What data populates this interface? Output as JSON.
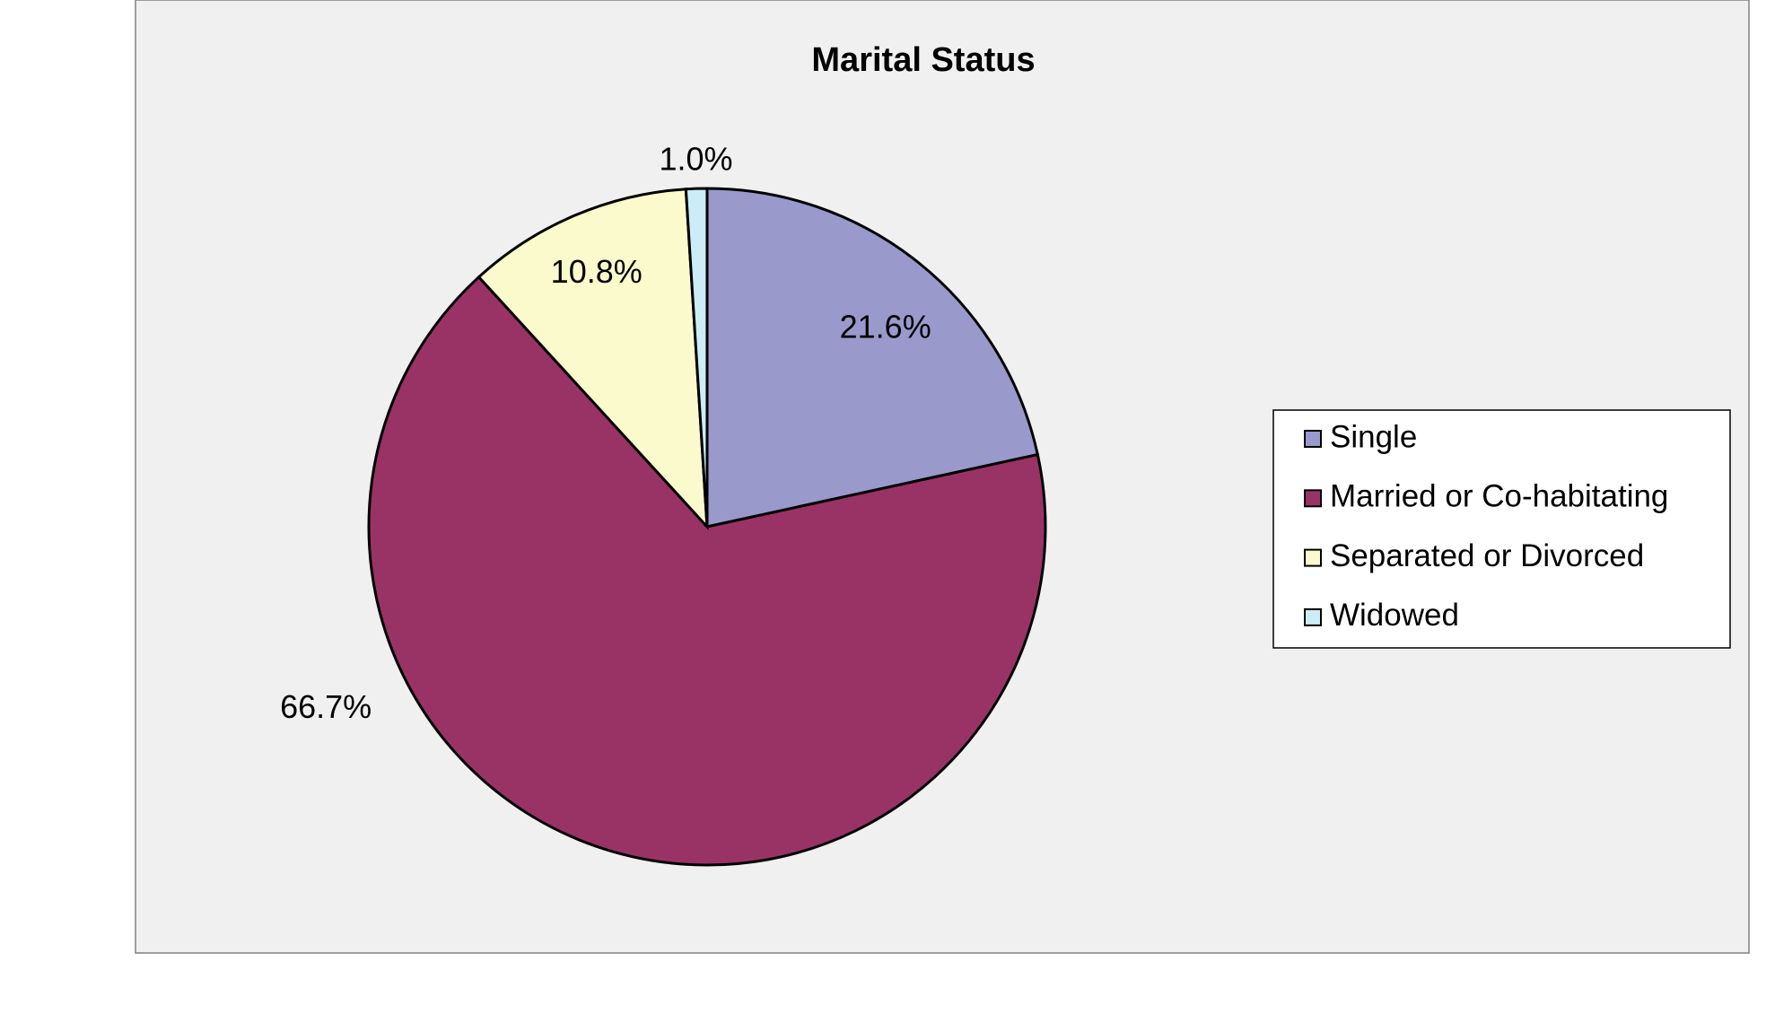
{
  "chart_data": {
    "type": "pie",
    "title": "Marital Status",
    "categories": [
      "Single",
      "Married or Co-habitating",
      "Separated or Divorced",
      "Widowed"
    ],
    "values": [
      21.6,
      66.7,
      10.8,
      1.0
    ],
    "value_labels": [
      "21.6%",
      "66.7%",
      "10.8%",
      "1.0%"
    ],
    "colors": [
      "#9999cc",
      "#993366",
      "#fafacc",
      "#ccecf8"
    ],
    "legend": "right"
  }
}
